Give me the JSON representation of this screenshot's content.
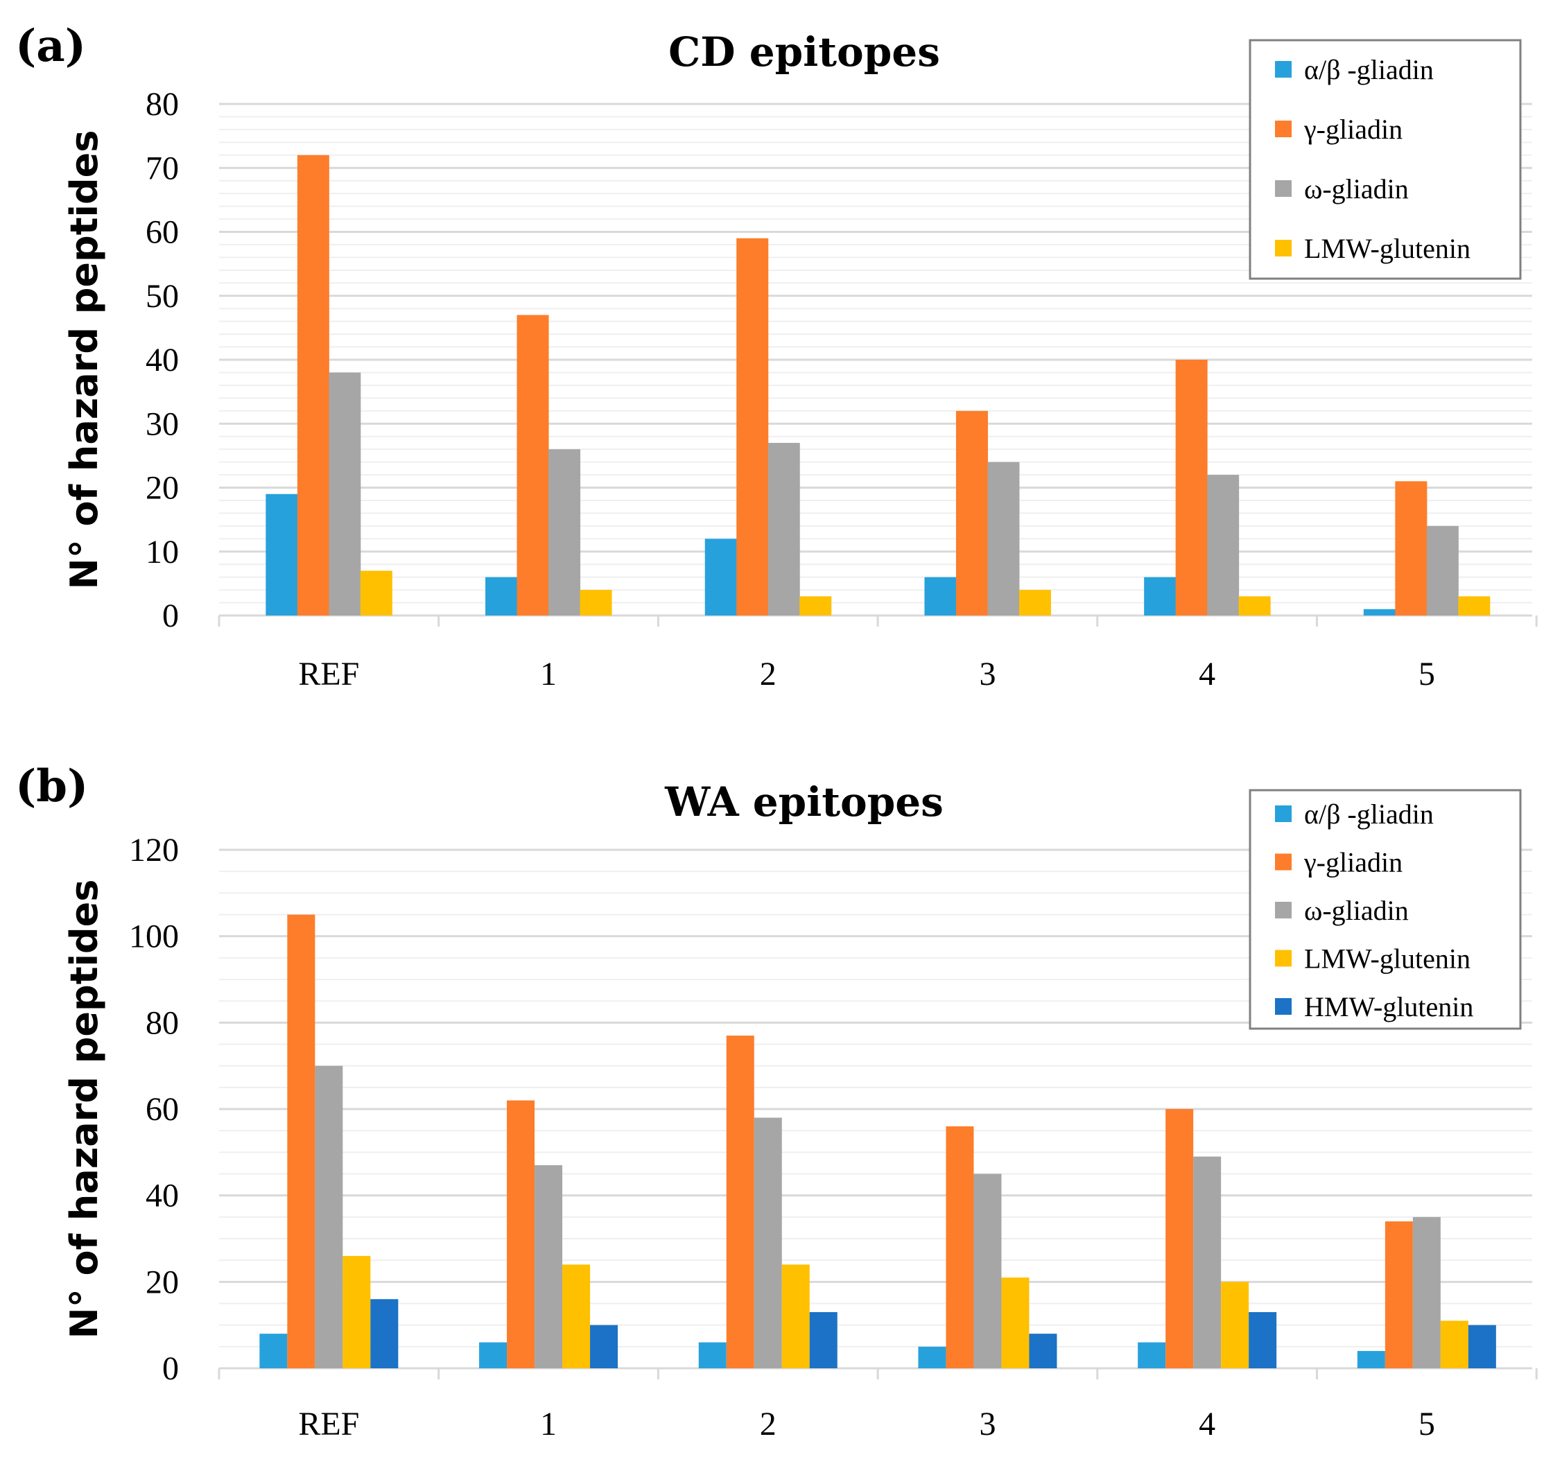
{
  "colors": {
    "alpha_beta": "#27a1dc",
    "gamma": "#fd7d2b",
    "omega": "#a6a6a6",
    "lmw": "#ffc000",
    "hmw": "#1b72c6"
  },
  "chart_data": [
    {
      "panel": "(a)",
      "type": "bar",
      "title": "CD epitopes",
      "xlabel": "",
      "ylabel": "N° of hazard peptides",
      "ylim": [
        0,
        80
      ],
      "yticks": [
        0,
        10,
        20,
        30,
        40,
        50,
        60,
        70,
        80
      ],
      "categories": [
        "REF",
        "1",
        "2",
        "3",
        "4",
        "5"
      ],
      "legend_position": "top-right",
      "series": [
        {
          "name": "α/β -gliadin",
          "color_key": "alpha_beta",
          "values": [
            19,
            6,
            12,
            6,
            6,
            1
          ]
        },
        {
          "name": "γ-gliadin",
          "color_key": "gamma",
          "values": [
            72,
            47,
            59,
            32,
            40,
            21
          ]
        },
        {
          "name": "ω-gliadin",
          "color_key": "omega",
          "values": [
            38,
            26,
            27,
            24,
            22,
            14
          ]
        },
        {
          "name": "LMW-glutenin",
          "color_key": "lmw",
          "values": [
            7,
            4,
            3,
            4,
            3,
            3
          ]
        }
      ]
    },
    {
      "panel": "(b)",
      "type": "bar",
      "title": "WA epitopes",
      "xlabel": "",
      "ylabel": "N° of hazard peptides",
      "ylim": [
        0,
        120
      ],
      "yticks": [
        0,
        20,
        40,
        60,
        80,
        100,
        120
      ],
      "categories": [
        "REF",
        "1",
        "2",
        "3",
        "4",
        "5"
      ],
      "legend_position": "top-right",
      "series": [
        {
          "name": "α/β -gliadin",
          "color_key": "alpha_beta",
          "values": [
            8,
            6,
            6,
            5,
            6,
            4
          ]
        },
        {
          "name": "γ-gliadin",
          "color_key": "gamma",
          "values": [
            105,
            62,
            77,
            56,
            60,
            34
          ]
        },
        {
          "name": "ω-gliadin",
          "color_key": "omega",
          "values": [
            70,
            47,
            58,
            45,
            49,
            35
          ]
        },
        {
          "name": "LMW-glutenin",
          "color_key": "lmw",
          "values": [
            26,
            24,
            24,
            21,
            20,
            11
          ]
        },
        {
          "name": "HMW-glutenin",
          "color_key": "hmw",
          "values": [
            16,
            10,
            13,
            8,
            13,
            10
          ]
        }
      ]
    }
  ]
}
